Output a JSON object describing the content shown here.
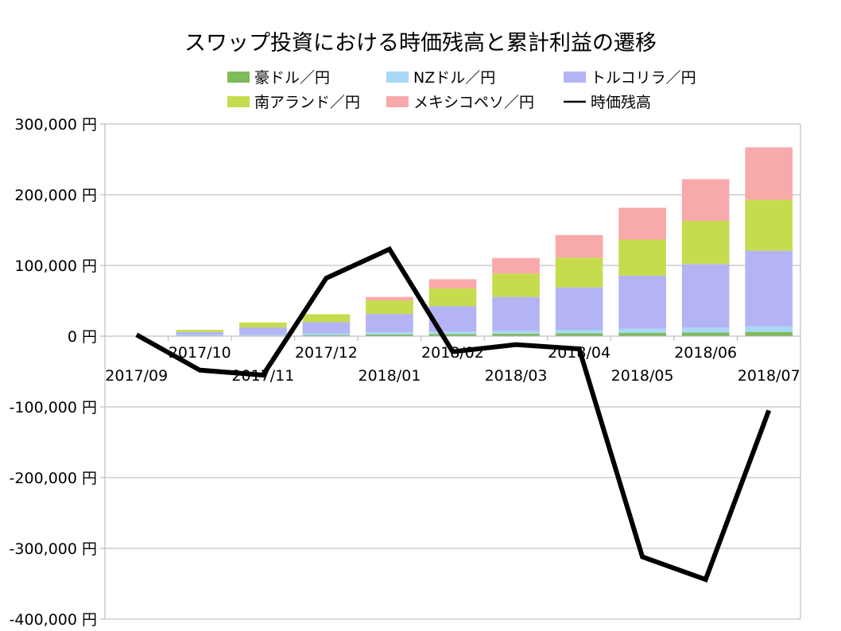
{
  "chart_data": {
    "type": "bar",
    "subtype": "stacked-bar-with-line",
    "title": "スワップ投資における時価残高と累計利益の遷移",
    "categories": [
      "2017/09",
      "2017/10",
      "2017/11",
      "2017/12",
      "2018/01",
      "2018/02",
      "2018/03",
      "2018/04",
      "2018/05",
      "2018/06",
      "2018/07"
    ],
    "series": [
      {
        "name": "豪ドル／円",
        "kind": "bar",
        "color": "#7fba5b",
        "values": [
          0,
          500,
          800,
          1500,
          2500,
          3000,
          3500,
          4000,
          4500,
          5000,
          6000
        ]
      },
      {
        "name": "NZドル／円",
        "kind": "bar",
        "color": "#a7d8f5",
        "values": [
          0,
          1000,
          1500,
          2500,
          3000,
          3500,
          4000,
          5000,
          6000,
          7000,
          8000
        ]
      },
      {
        "name": "トルコリラ／円",
        "kind": "bar",
        "color": "#b4b4f4",
        "values": [
          0,
          4500,
          10000,
          16000,
          26000,
          36000,
          48000,
          60000,
          75000,
          90000,
          107000
        ]
      },
      {
        "name": "南アランド／円",
        "kind": "bar",
        "color": "#c6dc4e",
        "values": [
          0,
          3000,
          7000,
          11000,
          19000,
          25000,
          33000,
          42000,
          51000,
          61000,
          72000
        ]
      },
      {
        "name": "メキシコペソ／円",
        "kind": "bar",
        "color": "#f8a9a9",
        "values": [
          0,
          0,
          0,
          0,
          5000,
          13000,
          22000,
          32000,
          45000,
          59000,
          74000
        ]
      },
      {
        "name": "時価残高",
        "kind": "line",
        "color": "#000000",
        "values": [
          2000,
          -48000,
          -55000,
          82000,
          123000,
          -22000,
          -12000,
          -18000,
          -312000,
          -344000,
          -105000
        ]
      }
    ],
    "ytick_labels": [
      "300,000 円",
      "200,000 円",
      "100,000 円",
      "0 円",
      "-100,000 円",
      "-200,000 円",
      "-300,000 円",
      "-400,000 円"
    ],
    "ylim": [
      -400000,
      300000
    ],
    "ystep": 100000,
    "grid": true,
    "legend": "top"
  }
}
